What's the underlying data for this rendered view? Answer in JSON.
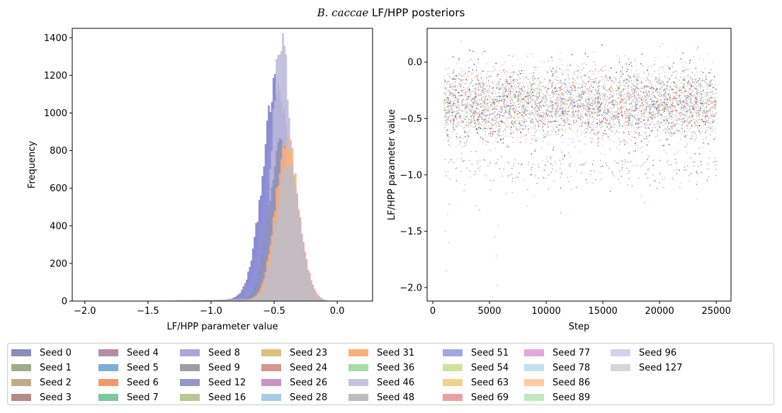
{
  "figure": {
    "title_italic": "B. caccae",
    "title_rest": " LF/HPP posteriors"
  },
  "chart_data": [
    {
      "type": "histogram",
      "title": "",
      "xlabel": "LF/HPP parameter value",
      "ylabel": "Frequency",
      "xlim": [
        -2.1,
        0.28
      ],
      "ylim": [
        0,
        1450
      ],
      "xticks": [
        -2.0,
        -1.5,
        -1.0,
        -0.5,
        0.0
      ],
      "xtick_labels": [
        "−2.0",
        "−1.5",
        "−1.0",
        "−0.5",
        "0.0"
      ],
      "yticks": [
        0,
        200,
        400,
        600,
        800,
        1000,
        1200,
        1400
      ],
      "grid": false,
      "series_shape": [
        {
          "seed": "Seed 12",
          "mean": -0.48,
          "sd": 0.11,
          "peak": 1130,
          "color": "#7b7bc8"
        },
        {
          "seed": "Seed 51",
          "mean": -0.47,
          "sd": 0.1,
          "peak": 1000,
          "color": "#8f92d9"
        },
        {
          "seed": "Seed 46",
          "mean": -0.44,
          "sd": 0.075,
          "peak": 1385,
          "color": "#bcb8db"
        },
        {
          "seed": "Seed 0",
          "mean": -0.45,
          "sd": 0.09,
          "peak": 820,
          "color": "#8b8eb6"
        },
        {
          "seed": "Seed 69",
          "mean": -0.39,
          "sd": 0.095,
          "peak": 720,
          "color": "#e4a2a8"
        },
        {
          "seed": "Seed 31",
          "mean": -0.4,
          "sd": 0.09,
          "peak": 860,
          "color": "#f9b07b"
        },
        {
          "seed": "Seed 77",
          "mean": -0.39,
          "sd": 0.09,
          "peak": 690,
          "color": "#e4a8d8"
        },
        {
          "seed": "Seed 48",
          "mean": -0.39,
          "sd": 0.09,
          "peak": 740,
          "color": "#bebebe"
        }
      ]
    },
    {
      "type": "scatter",
      "title": "",
      "xlabel": "Step",
      "ylabel": "LF/HPP parameter value",
      "xlim": [
        -500,
        26300
      ],
      "ylim": [
        -2.12,
        0.3
      ],
      "xticks": [
        0,
        5000,
        10000,
        15000,
        20000,
        25000
      ],
      "yticks": [
        0.0,
        -0.5,
        -1.0,
        -1.5,
        -2.0
      ],
      "ytick_labels": [
        "0.0",
        "−0.5",
        "−1.0",
        "−1.5",
        "−2.0"
      ],
      "step_range": [
        1000,
        25000
      ],
      "grid": false,
      "band_center": -0.37,
      "band_range": [
        -0.85,
        0.0
      ],
      "outliers": [
        {
          "x": 1200,
          "y": -1.85
        },
        {
          "x": 1400,
          "y": -1.6
        },
        {
          "x": 1100,
          "y": -1.5
        },
        {
          "x": 5600,
          "y": -1.72
        },
        {
          "x": 5700,
          "y": -1.98
        },
        {
          "x": 5500,
          "y": -1.55
        },
        {
          "x": 5800,
          "y": -1.45
        },
        {
          "x": 8300,
          "y": -1.28
        },
        {
          "x": 1300,
          "y": -1.35
        }
      ]
    }
  ],
  "legend": {
    "location": "bottom",
    "columns": 9,
    "entries": [
      {
        "label": "Seed 0",
        "color": "#8b8eb6"
      },
      {
        "label": "Seed 1",
        "color": "#9fac8a"
      },
      {
        "label": "Seed 2",
        "color": "#bead8a"
      },
      {
        "label": "Seed 3",
        "color": "#b38a8a"
      },
      {
        "label": "Seed 4",
        "color": "#b38da6"
      },
      {
        "label": "Seed 5",
        "color": "#7cafd6"
      },
      {
        "label": "Seed 6",
        "color": "#f0996c"
      },
      {
        "label": "Seed 7",
        "color": "#7ec89b"
      },
      {
        "label": "Seed 8",
        "color": "#aba7d4"
      },
      {
        "label": "Seed 9",
        "color": "#9e9e9e"
      },
      {
        "label": "Seed 12",
        "color": "#9495c8"
      },
      {
        "label": "Seed 16",
        "color": "#b8c793"
      },
      {
        "label": "Seed 23",
        "color": "#dbc080"
      },
      {
        "label": "Seed 24",
        "color": "#d49693"
      },
      {
        "label": "Seed 26",
        "color": "#c994c2"
      },
      {
        "label": "Seed 28",
        "color": "#a5cde6"
      },
      {
        "label": "Seed 31",
        "color": "#f9b07b"
      },
      {
        "label": "Seed 36",
        "color": "#a9dba6"
      },
      {
        "label": "Seed 46",
        "color": "#c6c3df"
      },
      {
        "label": "Seed 48",
        "color": "#bdbdbd"
      },
      {
        "label": "Seed 51",
        "color": "#a3a6e0"
      },
      {
        "label": "Seed 54",
        "color": "#d1e1a1"
      },
      {
        "label": "Seed 63",
        "color": "#efd28d"
      },
      {
        "label": "Seed 69",
        "color": "#e8a2a5"
      },
      {
        "label": "Seed 77",
        "color": "#e2a8d9"
      },
      {
        "label": "Seed 78",
        "color": "#c0e0ed"
      },
      {
        "label": "Seed 86",
        "color": "#fccca3"
      },
      {
        "label": "Seed 89",
        "color": "#c3e7bf"
      },
      {
        "label": "Seed 96",
        "color": "#d4d2ea"
      },
      {
        "label": "Seed 127",
        "color": "#d6d6d6"
      }
    ]
  }
}
